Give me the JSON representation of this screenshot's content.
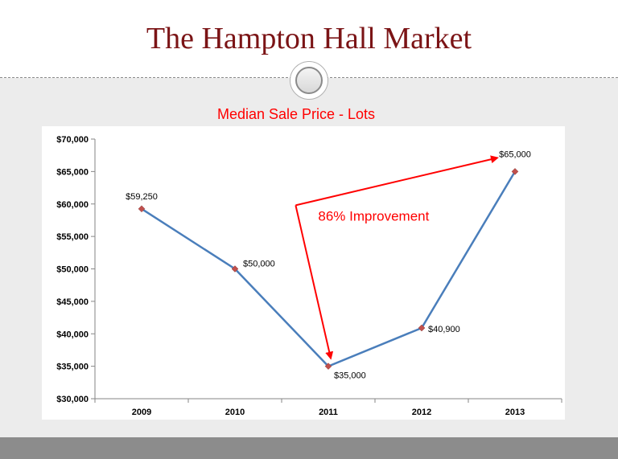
{
  "slide": {
    "title": "The Hampton Hall Market"
  },
  "colors": {
    "title": "#7b1416",
    "line": "#4a7ebb",
    "marker": "#c0504d",
    "annotation": "#ff0000",
    "background": "#ececec",
    "bottom_bar": "#8c8c8c"
  },
  "chart_data": {
    "type": "line",
    "title": "Median Sale Price - Lots",
    "categories": [
      "2009",
      "2010",
      "2011",
      "2012",
      "2013"
    ],
    "series": [
      {
        "values": [
          59250,
          50000,
          35000,
          40900,
          65000
        ],
        "data_labels": [
          "$59,250",
          "$50,000",
          "$35,000",
          "$40,900",
          "$65,000"
        ]
      }
    ],
    "ylim": [
      30000,
      70000
    ],
    "y_ticks": [
      30000,
      35000,
      40000,
      45000,
      50000,
      55000,
      60000,
      65000,
      70000
    ],
    "y_tick_labels": [
      "$30,000",
      "$35,000",
      "$40,000",
      "$45,000",
      "$50,000",
      "$55,000",
      "$60,000",
      "$65,000",
      "$70,000"
    ],
    "xlabel": "",
    "ylabel": "",
    "grid": false,
    "legend": "none",
    "annotation": {
      "text": "86% Improvement",
      "from_category": "2011",
      "to_category": "2013",
      "style": "red arrows"
    }
  }
}
